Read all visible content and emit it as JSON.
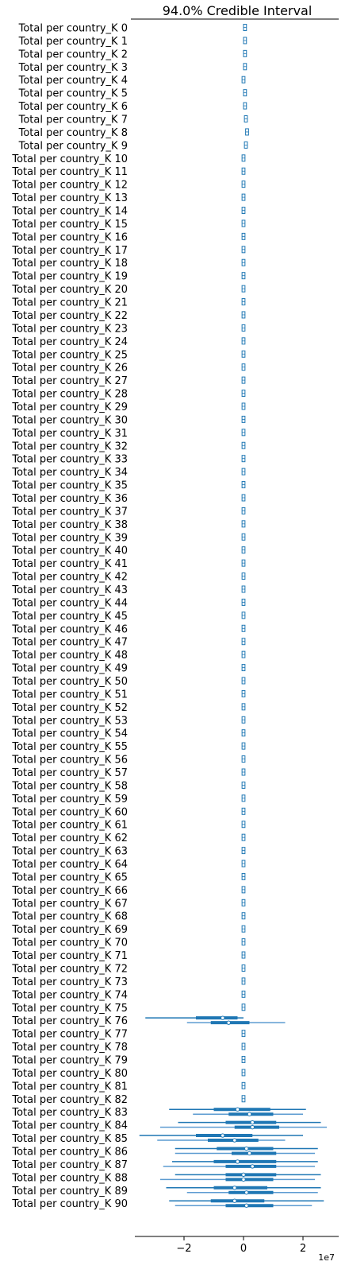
{
  "chart_data": {
    "type": "forest",
    "title": "94.0% Credible Interval",
    "xlabel": "",
    "ylabel": "",
    "x_offset_label": "1e7",
    "xlim": [
      -3.6,
      3.2
    ],
    "xticks": [
      -2,
      0,
      2
    ],
    "grid": false,
    "color": "#1f77b4",
    "color_light": "#5c9bd1",
    "label_prefix": "Total per country_K",
    "categories": [
      "Total per country_K 0",
      "Total per country_K 1",
      "Total per country_K 2",
      "Total per country_K 3",
      "Total per country_K 4",
      "Total per country_K 5",
      "Total per country_K 6",
      "Total per country_K 7",
      "Total per country_K 8",
      "Total per country_K 9",
      "Total per country_K 10",
      "Total per country_K 11",
      "Total per country_K 12",
      "Total per country_K 13",
      "Total per country_K 14",
      "Total per country_K 15",
      "Total per country_K 16",
      "Total per country_K 17",
      "Total per country_K 18",
      "Total per country_K 19",
      "Total per country_K 20",
      "Total per country_K 21",
      "Total per country_K 22",
      "Total per country_K 23",
      "Total per country_K 24",
      "Total per country_K 25",
      "Total per country_K 26",
      "Total per country_K 27",
      "Total per country_K 28",
      "Total per country_K 29",
      "Total per country_K 30",
      "Total per country_K 31",
      "Total per country_K 32",
      "Total per country_K 33",
      "Total per country_K 34",
      "Total per country_K 35",
      "Total per country_K 36",
      "Total per country_K 37",
      "Total per country_K 38",
      "Total per country_K 39",
      "Total per country_K 40",
      "Total per country_K 41",
      "Total per country_K 42",
      "Total per country_K 43",
      "Total per country_K 44",
      "Total per country_K 45",
      "Total per country_K 46",
      "Total per country_K 47",
      "Total per country_K 48",
      "Total per country_K 49",
      "Total per country_K 50",
      "Total per country_K 51",
      "Total per country_K 52",
      "Total per country_K 53",
      "Total per country_K 54",
      "Total per country_K 55",
      "Total per country_K 56",
      "Total per country_K 57",
      "Total per country_K 58",
      "Total per country_K 59",
      "Total per country_K 60",
      "Total per country_K 61",
      "Total per country_K 62",
      "Total per country_K 63",
      "Total per country_K 64",
      "Total per country_K 65",
      "Total per country_K 66",
      "Total per country_K 67",
      "Total per country_K 68",
      "Total per country_K 69",
      "Total per country_K 70",
      "Total per country_K 71",
      "Total per country_K 72",
      "Total per country_K 73",
      "Total per country_K 74",
      "Total per country_K 75",
      "Total per country_K 76",
      "Total per country_K 77",
      "Total per country_K 78",
      "Total per country_K 79",
      "Total per country_K 80",
      "Total per country_K 81",
      "Total per country_K 82",
      "Total per country_K 83",
      "Total per country_K 84",
      "Total per country_K 85",
      "Total per country_K 86",
      "Total per country_K 87",
      "Total per country_K 88",
      "Total per country_K 89",
      "Total per country_K 90"
    ],
    "small_centers": [
      0.05,
      0.05,
      0.05,
      0.05,
      0.0,
      0.05,
      0.05,
      0.08,
      0.12,
      0.08,
      0,
      0,
      0,
      0,
      0,
      0,
      0,
      0,
      0,
      0,
      0,
      0,
      0,
      0,
      0,
      0,
      0,
      0,
      0,
      0,
      0,
      0,
      0,
      0,
      0,
      0,
      0,
      0,
      0,
      0,
      0,
      0,
      0,
      0,
      0,
      0,
      0,
      0,
      0,
      0,
      0,
      0,
      0,
      0,
      0,
      0,
      0,
      0,
      0,
      0,
      0,
      0,
      0,
      0,
      0,
      0,
      0,
      0,
      0,
      0,
      0,
      0,
      0,
      0,
      0,
      0,
      0,
      0,
      0,
      0,
      0,
      0,
      0
    ],
    "small_halfwidth": 0.05,
    "wide_chains": [
      {
        "index": 76,
        "chains": [
          {
            "lo94": -3.3,
            "hi94": 0.0,
            "lo50": -1.6,
            "hi50": -0.2,
            "median": -0.7
          },
          {
            "lo94": -1.9,
            "hi94": 1.4,
            "lo50": -1.1,
            "hi50": 0.2,
            "median": -0.5
          }
        ]
      },
      {
        "index": 83,
        "chains": [
          {
            "lo94": -2.5,
            "hi94": 2.1,
            "lo50": -1.0,
            "hi50": 0.9,
            "median": -0.2
          },
          {
            "lo94": -1.7,
            "hi94": 2.0,
            "lo50": -0.5,
            "hi50": 1.0,
            "median": 0.2
          }
        ]
      },
      {
        "index": 84,
        "chains": [
          {
            "lo94": -2.2,
            "hi94": 2.6,
            "lo50": -0.6,
            "hi50": 1.1,
            "median": 0.3
          },
          {
            "lo94": -2.8,
            "hi94": 2.8,
            "lo50": -0.3,
            "hi50": 1.2,
            "median": 0.3
          }
        ]
      },
      {
        "index": 85,
        "chains": [
          {
            "lo94": -3.5,
            "hi94": 2.0,
            "lo50": -1.6,
            "hi50": 0.3,
            "median": -0.7
          },
          {
            "lo94": -2.9,
            "hi94": 1.4,
            "lo50": -1.2,
            "hi50": 0.5,
            "median": -0.3
          }
        ]
      },
      {
        "index": 86,
        "chains": [
          {
            "lo94": -2.3,
            "hi94": 2.5,
            "lo50": -0.9,
            "hi50": 1.0,
            "median": 0.1
          },
          {
            "lo94": -2.3,
            "hi94": 2.4,
            "lo50": -0.4,
            "hi50": 1.1,
            "median": 0.2
          }
        ]
      },
      {
        "index": 87,
        "chains": [
          {
            "lo94": -2.4,
            "hi94": 2.5,
            "lo50": -1.0,
            "hi50": 1.1,
            "median": -0.2
          },
          {
            "lo94": -2.7,
            "hi94": 2.4,
            "lo50": -0.6,
            "hi50": 1.1,
            "median": 0.3
          }
        ]
      },
      {
        "index": 88,
        "chains": [
          {
            "lo94": -2.3,
            "hi94": 2.6,
            "lo50": -0.6,
            "hi50": 1.1,
            "median": 0.0
          },
          {
            "lo94": -2.8,
            "hi94": 2.4,
            "lo50": -0.6,
            "hi50": 1.0,
            "median": 0.0
          }
        ]
      },
      {
        "index": 89,
        "chains": [
          {
            "lo94": -2.6,
            "hi94": 2.6,
            "lo50": -1.0,
            "hi50": 0.8,
            "median": -0.3
          },
          {
            "lo94": -1.9,
            "hi94": 2.5,
            "lo50": -0.5,
            "hi50": 1.0,
            "median": 0.1
          }
        ]
      },
      {
        "index": 90,
        "chains": [
          {
            "lo94": -2.5,
            "hi94": 2.7,
            "lo50": -1.1,
            "hi50": 0.7,
            "median": -0.3
          },
          {
            "lo94": -2.3,
            "hi94": 2.3,
            "lo50": -0.6,
            "hi50": 1.0,
            "median": 0.1
          }
        ]
      }
    ]
  }
}
